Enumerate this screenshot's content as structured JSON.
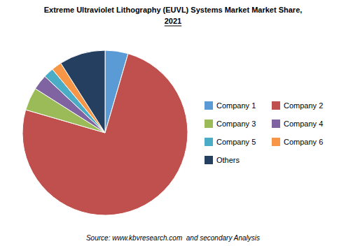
{
  "chart_data": {
    "type": "pie",
    "title": [
      "Extreme Ultraviolet Lithography (EUVL) Systems Market Market Share,",
      "2021"
    ],
    "categories": [
      "Company 1",
      "Company 2",
      "Company 3",
      "Company 4",
      "Company 5",
      "Company 6",
      "Others"
    ],
    "values": [
      4.5,
      75.0,
      4.5,
      3.0,
      2.0,
      2.0,
      9.0
    ],
    "colors": [
      "#5B9BD5",
      "#C0504D",
      "#9BBB59",
      "#8064A2",
      "#4BACC6",
      "#F79646",
      "#243F60"
    ],
    "annotations": [
      "Source: www.kbvresearch.com  and secondary Analysis"
    ],
    "legend": "right"
  }
}
